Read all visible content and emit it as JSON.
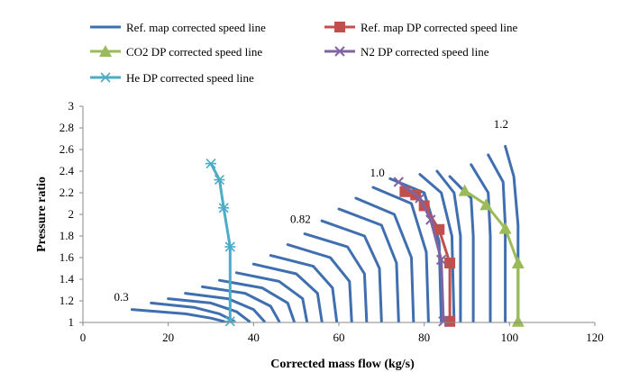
{
  "chart_data": {
    "type": "line",
    "xlabel": "Corrected mass flow (kg/s)",
    "ylabel": "Pressure ratio",
    "xlim": [
      0,
      120
    ],
    "ylim": [
      1,
      3
    ],
    "x_ticks": [
      "0",
      "20",
      "40",
      "60",
      "80",
      "100",
      "120"
    ],
    "y_ticks": [
      "1",
      "1.2",
      "1.4",
      "1.6",
      "1.8",
      "2",
      "2.2",
      "2.4",
      "2.6",
      "2.8",
      "3"
    ],
    "grid": false,
    "legend_placement": "top",
    "speed_labels": [
      {
        "text": "0.3",
        "x": 9,
        "y": 1.2
      },
      {
        "text": "0.82",
        "x": 51,
        "y": 1.92
      },
      {
        "text": "1.0",
        "x": 69,
        "y": 2.35
      },
      {
        "text": "1.2",
        "x": 98,
        "y": 2.8
      }
    ],
    "series": [
      {
        "name": "Ref. map corrected speed line",
        "color": "#3F6FAE",
        "marker": "none",
        "lines": [
          [
            [
              11.5,
              1.12
            ],
            [
              24,
              1.08
            ],
            [
              30,
              1.04
            ],
            [
              33,
              1.01
            ]
          ],
          [
            [
              16,
              1.18
            ],
            [
              26,
              1.14
            ],
            [
              32,
              1.08
            ],
            [
              35.5,
              1.01
            ]
          ],
          [
            [
              20,
              1.22
            ],
            [
              30,
              1.18
            ],
            [
              36,
              1.1
            ],
            [
              39,
              1.01
            ]
          ],
          [
            [
              24,
              1.27
            ],
            [
              34,
              1.22
            ],
            [
              40,
              1.12
            ],
            [
              42.5,
              1.01
            ]
          ],
          [
            [
              28,
              1.33
            ],
            [
              38,
              1.27
            ],
            [
              44,
              1.15
            ],
            [
              46,
              1.01
            ]
          ],
          [
            [
              32,
              1.39
            ],
            [
              42,
              1.32
            ],
            [
              48,
              1.18
            ],
            [
              49.5,
              1.01
            ]
          ],
          [
            [
              36,
              1.46
            ],
            [
              46,
              1.38
            ],
            [
              51.5,
              1.22
            ],
            [
              52.5,
              1.01
            ]
          ],
          [
            [
              40,
              1.54
            ],
            [
              50,
              1.45
            ],
            [
              55,
              1.27
            ],
            [
              56,
              1.01
            ]
          ],
          [
            [
              44,
              1.62
            ],
            [
              54,
              1.52
            ],
            [
              58.5,
              1.32
            ],
            [
              59.5,
              1.01
            ]
          ],
          [
            [
              48,
              1.72
            ],
            [
              58,
              1.6
            ],
            [
              62.5,
              1.38
            ],
            [
              63,
              1.01
            ]
          ],
          [
            [
              52,
              1.82
            ],
            [
              62,
              1.7
            ],
            [
              66,
              1.45
            ],
            [
              66.5,
              1.01
            ]
          ],
          [
            [
              56,
              1.94
            ],
            [
              66,
              1.8
            ],
            [
              69.5,
              1.5
            ],
            [
              70,
              1.01
            ]
          ],
          [
            [
              60,
              2.05
            ],
            [
              70,
              1.9
            ],
            [
              73.5,
              1.55
            ],
            [
              74,
              1.01
            ]
          ],
          [
            [
              64,
              2.15
            ],
            [
              73,
              2.0
            ],
            [
              77,
              1.6
            ],
            [
              77.5,
              1.01
            ]
          ],
          [
            [
              68,
              2.25
            ],
            [
              77,
              2.1
            ],
            [
              80.5,
              1.65
            ],
            [
              81,
              1.01
            ]
          ],
          [
            [
              72,
              2.33
            ],
            [
              80,
              2.2
            ],
            [
              83.5,
              1.75
            ],
            [
              84,
              1.01
            ]
          ],
          [
            [
              79,
              2.37
            ],
            [
              84,
              2.2
            ],
            [
              86.5,
              1.8
            ],
            [
              87,
              1.01
            ]
          ],
          [
            [
              83,
              2.4
            ],
            [
              87,
              2.2
            ],
            [
              88.5,
              1.8
            ],
            [
              88.5,
              1.01
            ]
          ],
          [
            [
              86,
              2.35
            ],
            [
              91,
              2.15
            ],
            [
              91.5,
              1.8
            ],
            [
              91.5,
              1.01
            ]
          ],
          [
            [
              91,
              2.46
            ],
            [
              95,
              2.2
            ],
            [
              95.5,
              1.8
            ],
            [
              95.5,
              1.01
            ]
          ],
          [
            [
              95,
              2.55
            ],
            [
              98.5,
              2.3
            ],
            [
              99,
              1.9
            ],
            [
              99,
              1.01
            ]
          ],
          [
            [
              99,
              2.63
            ],
            [
              101,
              2.35
            ],
            [
              102,
              1.9
            ],
            [
              102,
              1.01
            ]
          ]
        ]
      },
      {
        "name": "Ref. map DP corrected speed line",
        "color": "#C0504D",
        "marker": "square",
        "points": [
          [
            75.5,
            2.21
          ],
          [
            78,
            2.18
          ],
          [
            80,
            2.08
          ],
          [
            83.5,
            1.86
          ],
          [
            86,
            1.55
          ],
          [
            86,
            1.01
          ]
        ]
      },
      {
        "name": "CO2 DP corrected speed line",
        "color": "#9BBB59",
        "marker": "triangle",
        "points": [
          [
            89.5,
            2.22
          ],
          [
            94.5,
            2.09
          ],
          [
            99,
            1.87
          ],
          [
            102,
            1.55
          ],
          [
            102,
            1.01
          ]
        ]
      },
      {
        "name": "N2 DP corrected speed line",
        "color": "#8064A2",
        "marker": "x",
        "points": [
          [
            74,
            2.3
          ],
          [
            79,
            2.15
          ],
          [
            81.5,
            1.95
          ],
          [
            84,
            1.58
          ],
          [
            84.5,
            1.01
          ]
        ]
      },
      {
        "name": "He DP corrected speed line",
        "color": "#4BACC6",
        "marker": "star",
        "points": [
          [
            30,
            2.47
          ],
          [
            32,
            2.32
          ],
          [
            33,
            2.06
          ],
          [
            34.5,
            1.7
          ],
          [
            34.5,
            1.01
          ]
        ]
      }
    ]
  }
}
